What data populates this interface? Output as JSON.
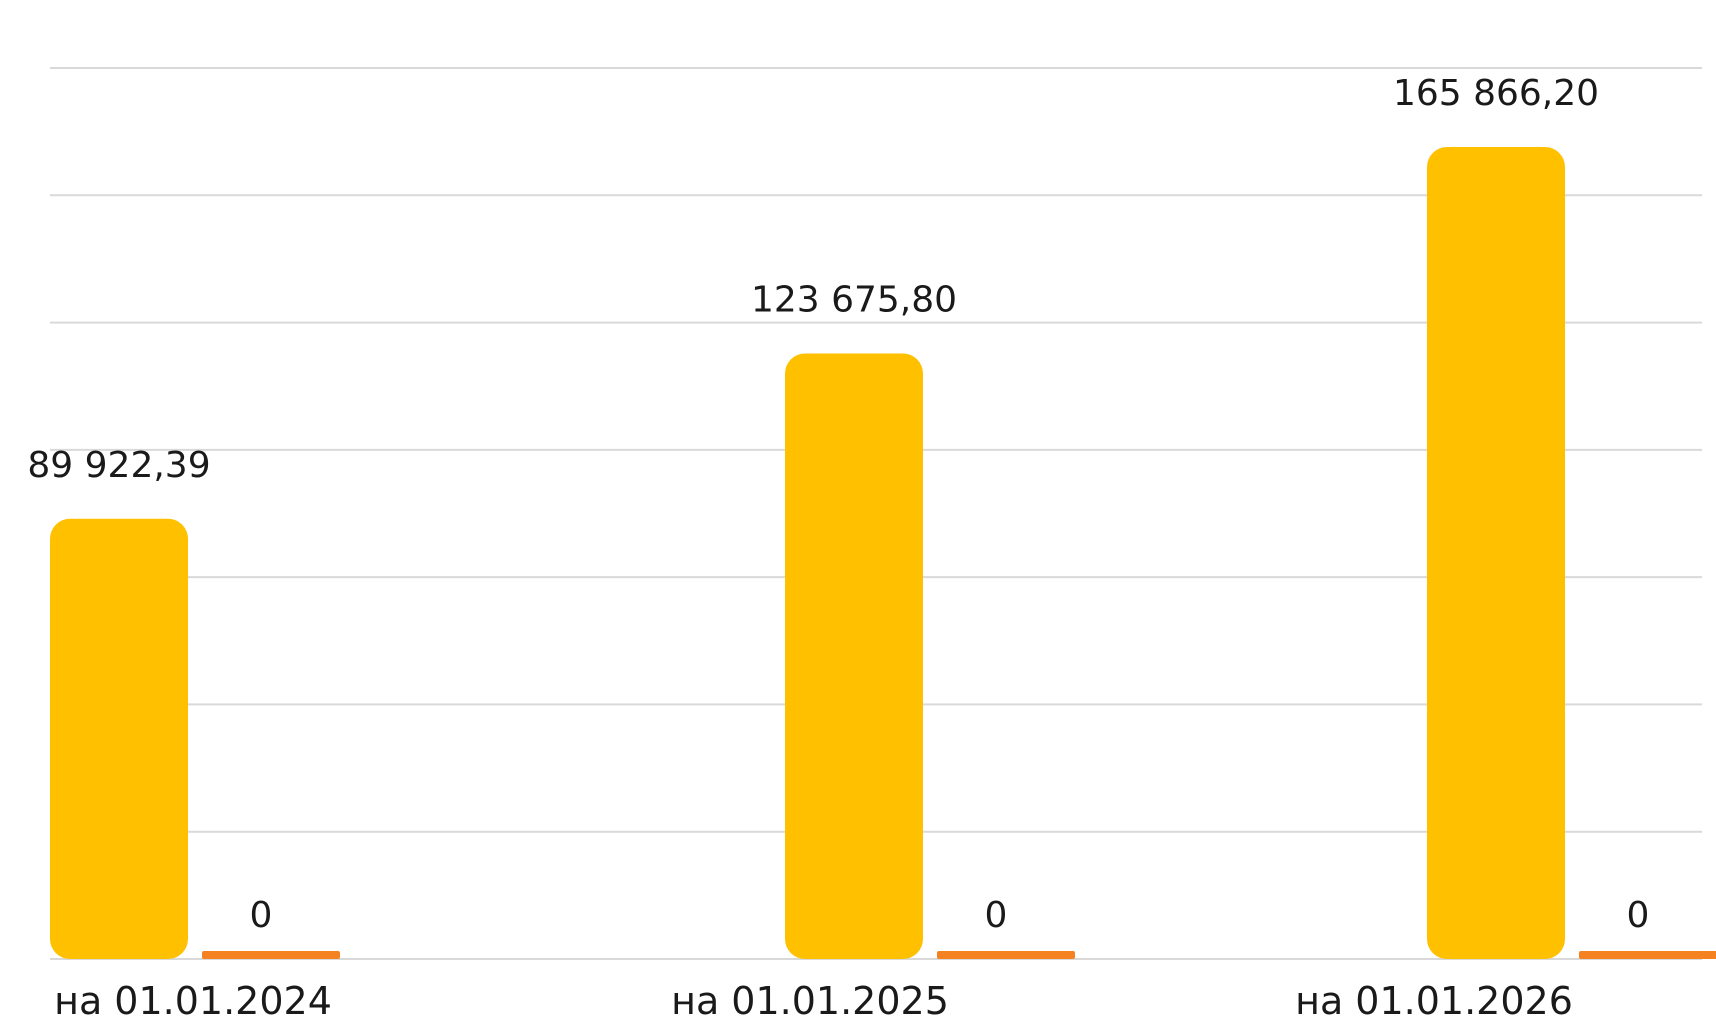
{
  "chart_data": {
    "type": "bar",
    "categories": [
      "на 01.01.2024",
      "на 01.01.2025",
      "на 01.01.2026"
    ],
    "series": [
      {
        "values": [
          89922.39,
          123675.8,
          165866.2
        ],
        "labels": [
          "89 922,39",
          "123 675,80",
          "165 866,20"
        ],
        "color": "#ffc000"
      },
      {
        "values": [
          0,
          0,
          0
        ],
        "labels": [
          "0",
          "0",
          "0"
        ],
        "color": "#f58220"
      }
    ],
    "title": "",
    "xlabel": "",
    "ylabel": "",
    "ylim": [
      0,
      175000
    ],
    "grid": true,
    "legend": "none"
  }
}
